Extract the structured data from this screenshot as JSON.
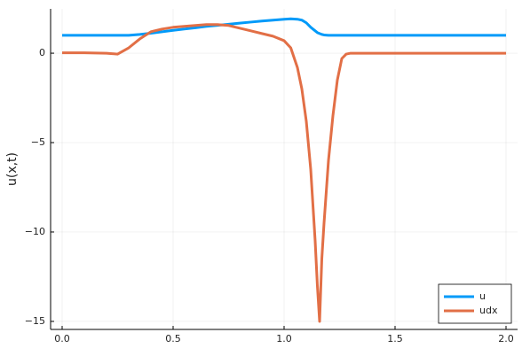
{
  "chart_data": {
    "type": "line",
    "ylabel": "u(x,t)",
    "x": [
      0,
      0.1,
      0.2,
      0.25,
      0.3,
      0.35,
      0.4,
      0.45,
      0.5,
      0.55,
      0.6,
      0.65,
      0.7,
      0.75,
      0.8,
      0.85,
      0.9,
      0.95,
      1.0,
      1.03,
      1.06,
      1.08,
      1.1,
      1.12,
      1.14,
      1.15,
      1.16,
      1.17,
      1.18,
      1.2,
      1.22,
      1.24,
      1.26,
      1.28,
      1.3,
      1.4,
      1.5,
      1.6,
      1.7,
      1.8,
      1.9,
      2.0
    ],
    "series": [
      {
        "name": "u",
        "color": "#009af9",
        "values": [
          1.0,
          1.0,
          1.0,
          1.0,
          1.0,
          1.05,
          1.12,
          1.2,
          1.28,
          1.35,
          1.42,
          1.5,
          1.56,
          1.62,
          1.68,
          1.74,
          1.8,
          1.85,
          1.9,
          1.92,
          1.9,
          1.85,
          1.7,
          1.45,
          1.25,
          1.15,
          1.1,
          1.05,
          1.02,
          1.0,
          1.0,
          1.0,
          1.0,
          1.0,
          1.0,
          1.0,
          1.0,
          1.0,
          1.0,
          1.0,
          1.0,
          1.0
        ]
      },
      {
        "name": "udx",
        "color": "#e26f46",
        "values": [
          0.02,
          0.02,
          0,
          -0.05,
          0.3,
          0.8,
          1.2,
          1.35,
          1.45,
          1.5,
          1.55,
          1.6,
          1.6,
          1.55,
          1.4,
          1.25,
          1.1,
          0.95,
          0.7,
          0.3,
          -0.8,
          -2.0,
          -3.8,
          -6.5,
          -10.5,
          -13,
          -15,
          -11.5,
          -9.5,
          -6.0,
          -3.5,
          -1.5,
          -0.3,
          -0.05,
          0,
          0,
          0,
          0,
          0,
          0,
          0,
          0
        ]
      }
    ],
    "xlim": [
      -0.052,
      2.052
    ],
    "ylim": [
      -15.45,
      2.48
    ],
    "xticks": [
      {
        "value": 0,
        "label": "0.0"
      },
      0.5,
      {
        "value": 1,
        "label": "1.0"
      },
      1.5,
      {
        "value": 2,
        "label": "2.0"
      }
    ],
    "yticks": [
      {
        "value": -15,
        "label": "−15"
      },
      {
        "value": -10,
        "label": "−10"
      },
      {
        "value": -5,
        "label": "−5"
      },
      0
    ],
    "grid": true,
    "legend": "bottom-right"
  }
}
